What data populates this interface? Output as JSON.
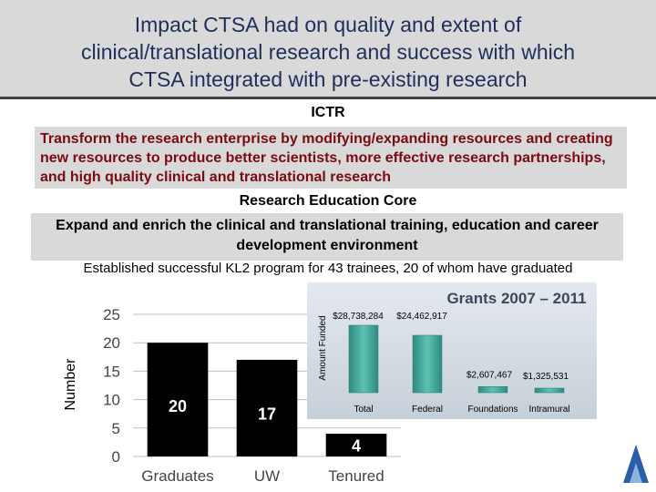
{
  "header": {
    "title": "Impact CTSA had on quality and extent of\nclinical/translational research and success with which\nCTSA integrated with pre-existing research"
  },
  "section": {
    "heading": "ICTR",
    "mission": "Transform the research enterprise by modifying/expanding resources and creating new resources to produce better scientists, more effective research partnerships, and high quality clinical and translational research"
  },
  "core": {
    "heading": "Research Education Core",
    "goal": "Expand and enrich the clinical and translational training, education and career development environment",
    "achievement": "Established successful KL2 program for 43 trainees, 20 of whom have graduated"
  },
  "colors": {
    "title": "#1f2f5c",
    "mission": "#7a0b10",
    "bar_dark": "#000000",
    "bar_grants": "#4aaea0",
    "grants_bg": "#cfd8df"
  },
  "chart_data": [
    {
      "type": "bar",
      "categories": [
        "Graduates",
        "UW",
        "Tenured"
      ],
      "values": [
        20,
        17,
        4
      ],
      "data_labels": [
        "20",
        "17",
        "4"
      ],
      "ylabel": "Number",
      "yticks": [
        "0",
        "5",
        "10",
        "15",
        "20",
        "25"
      ],
      "ylim": [
        0,
        25
      ],
      "grid": true
    },
    {
      "type": "bar",
      "title": "Grants 2007 – 2011",
      "categories": [
        "Total",
        "Federal",
        "Foundations",
        "Intramural"
      ],
      "values": [
        28738284,
        24462917,
        2607467,
        1325531
      ],
      "data_labels": [
        "$28,738,284",
        "$24,462,917",
        "$2,607,467",
        "$1,325,531"
      ],
      "ylabel": "Amount Funded",
      "ylim": [
        0,
        28738284
      ],
      "grid": false
    }
  ]
}
